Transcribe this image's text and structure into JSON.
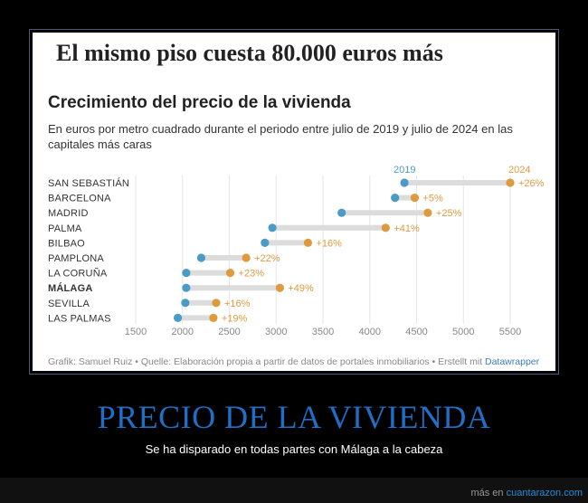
{
  "headline": "El mismo piso cuesta 80.000 euros más",
  "chart_data": {
    "type": "dumbbell",
    "title": "Crecimiento del precio de la vivienda",
    "subtitle": "En euros por metro cuadrado durante el periodo entre julio de 2019 y julio de 2024 en las capitales más caras",
    "series": [
      {
        "name": "2019",
        "color": "#4a9cc7"
      },
      {
        "name": "2024",
        "color": "#e09a3e"
      }
    ],
    "categories": [
      "SAN SEBASTIÁN",
      "BARCELONA",
      "MADRID",
      "PALMA",
      "BILBAO",
      "PAMPLONA",
      "LA CORUÑA",
      "MÁLAGA",
      "SEVILLA",
      "LAS PALMAS"
    ],
    "highlight_category": "MÁLAGA",
    "values_2019": [
      4370,
      4270,
      3700,
      2960,
      2880,
      2200,
      2040,
      2040,
      2030,
      1950
    ],
    "values_2024": [
      5500,
      4480,
      4620,
      4170,
      3340,
      2680,
      2510,
      3040,
      2360,
      2330
    ],
    "change_labels": [
      "+26%",
      "+5%",
      "+25%",
      "+41%",
      "+16%",
      "+22%",
      "+23%",
      "+49%",
      "+16%",
      "+19%"
    ],
    "x_ticks": [
      1500,
      2000,
      2500,
      3000,
      3500,
      4000,
      4500,
      5000,
      5500
    ],
    "xlim": [
      1500,
      5500
    ],
    "grid": true
  },
  "footer": {
    "text": "Grafik: Samuel Ruiz • Quelle: Elaboración propia a partir de datos de portales inmobiliarios • Erstellt mit",
    "link": "Datawrapper"
  },
  "caption": {
    "title": "PRECIO DE LA VIVIENDA",
    "subtitle": "Se ha disparado en todas partes con Málaga a la cabeza"
  },
  "credit": {
    "prefix": "más en",
    "site": "cuantarazon.com"
  }
}
